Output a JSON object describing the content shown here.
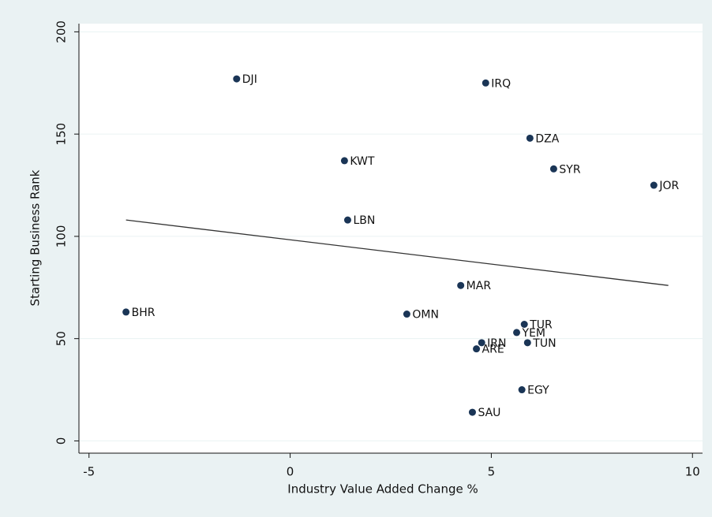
{
  "chart_data": {
    "type": "scatter",
    "x_label": "Industry Value Added Change %",
    "y_label": "Starting Business Rank",
    "labels": [
      "DJI",
      "IRQ",
      "DZA",
      "KWT",
      "SYR",
      "JOR",
      "LBN",
      "MAR",
      "BHR",
      "OMN",
      "TUR",
      "YEM",
      "IRN",
      "TUN",
      "ARE",
      "EGY",
      "SAU"
    ],
    "x": [
      -1.33,
      4.86,
      5.96,
      1.35,
      6.55,
      9.04,
      1.43,
      4.24,
      -4.08,
      2.9,
      5.82,
      5.63,
      4.76,
      5.9,
      4.63,
      5.76,
      4.53
    ],
    "values": [
      177,
      175,
      148,
      137,
      133,
      125,
      108,
      76,
      63,
      62,
      57,
      53,
      48,
      48,
      45,
      25,
      14
    ],
    "color": "#1a3556",
    "fit_x": [
      -4.08,
      9.4
    ],
    "fit_values": [
      108,
      76
    ],
    "fit_color": "#333333",
    "xlim": [
      -5.25,
      10.25
    ],
    "ylim": [
      -6,
      204
    ],
    "xticks": [
      -5,
      0,
      5,
      10
    ],
    "yticks": [
      0,
      50,
      100,
      150,
      200
    ],
    "grid": true
  }
}
